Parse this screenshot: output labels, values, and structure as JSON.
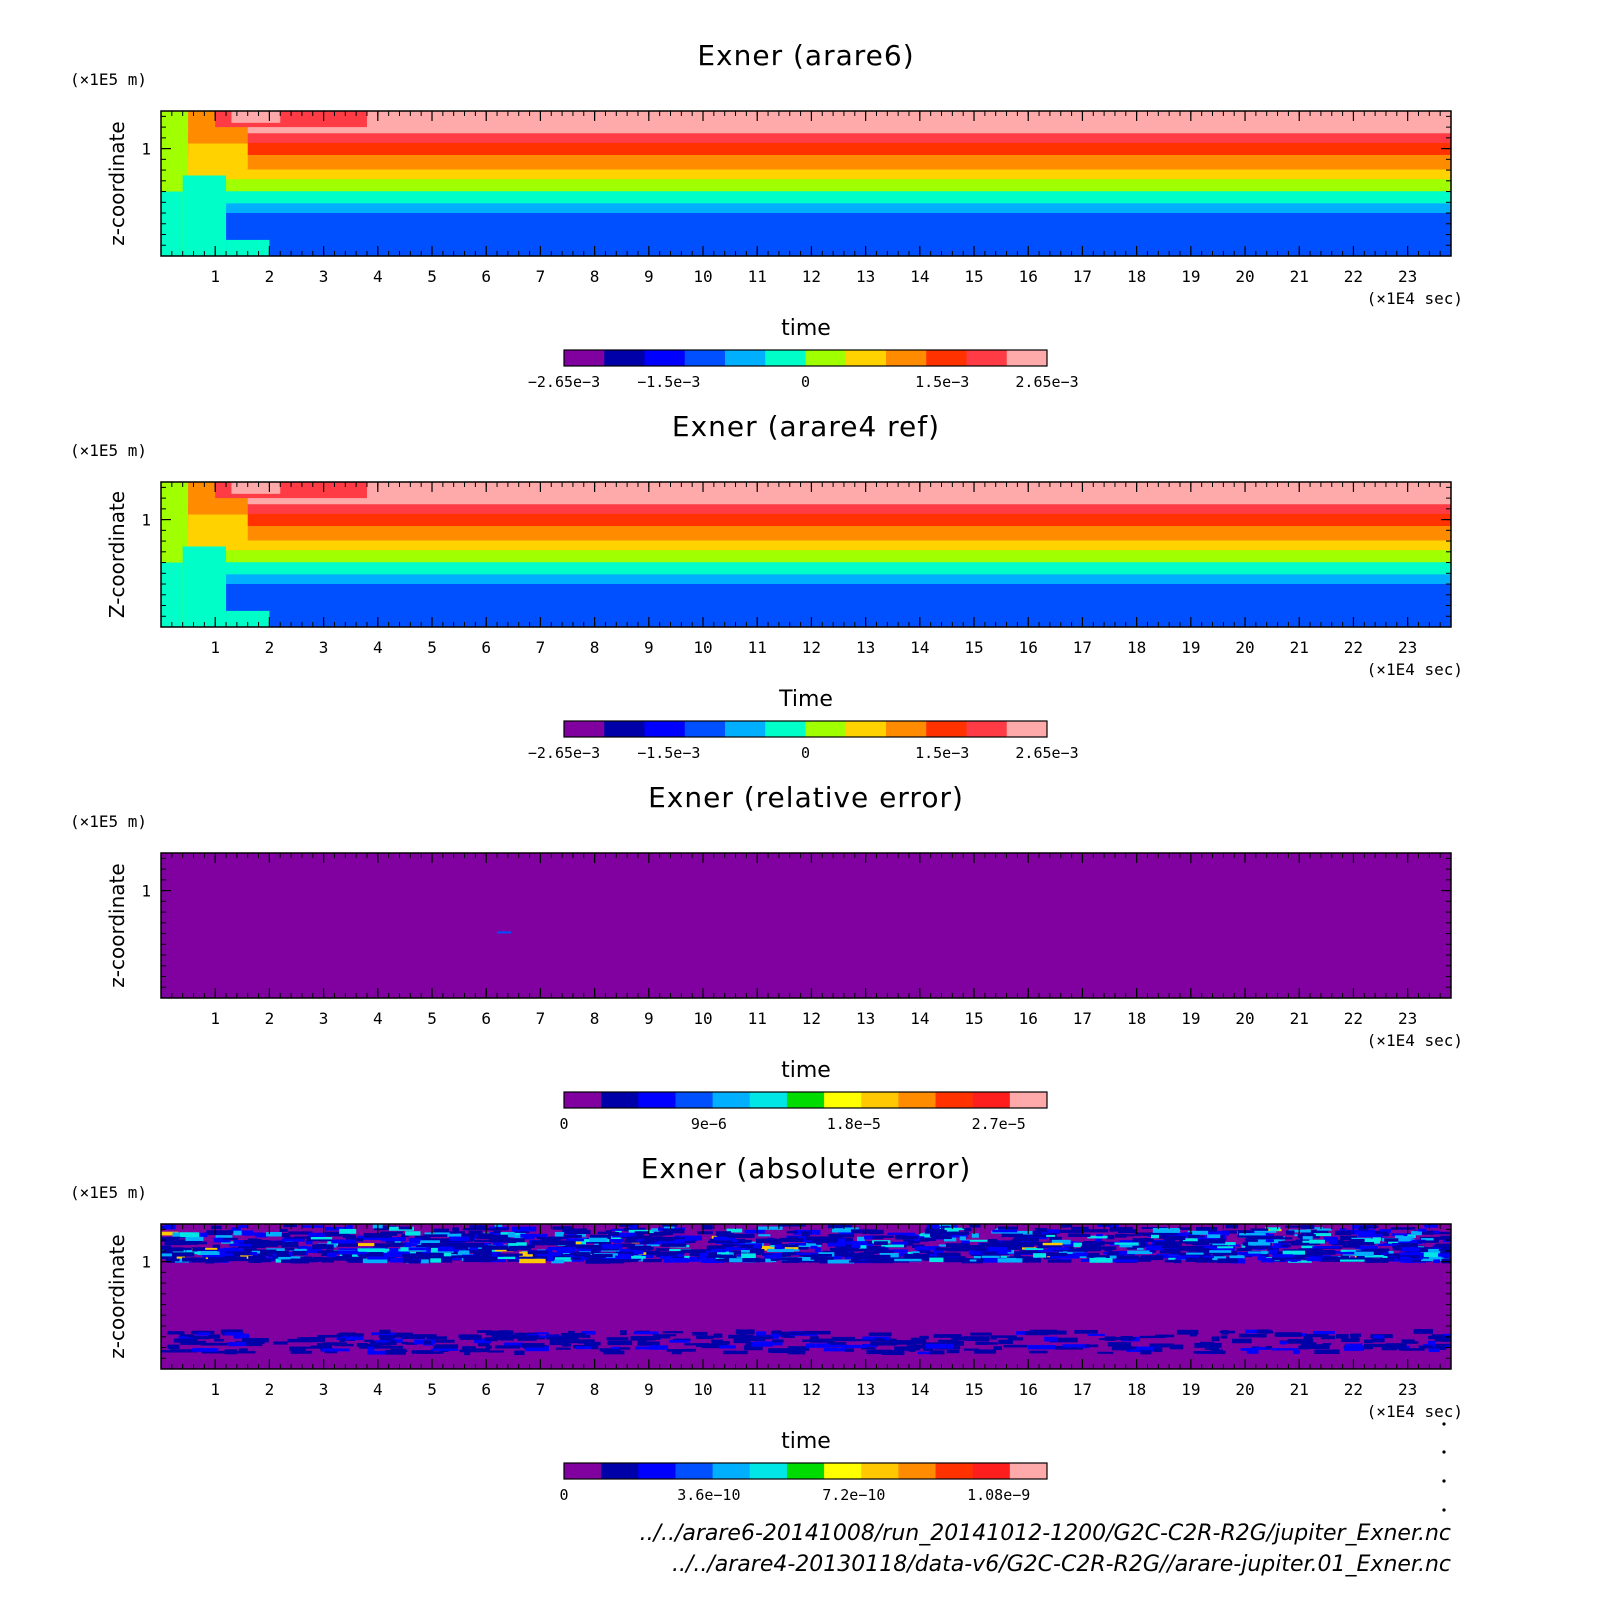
{
  "chart_data": [
    {
      "type": "heatmap",
      "title": "Exner (arare6)",
      "xlabel": "time",
      "ylabel": "z-coordinate",
      "x_unit": "(×1E4 sec)",
      "y_unit": "(×1E5 m)",
      "xlim": [
        0,
        23.8
      ],
      "ylim": [
        0,
        1.35
      ],
      "xticks": [
        1,
        2,
        3,
        4,
        5,
        6,
        7,
        8,
        9,
        10,
        11,
        12,
        13,
        14,
        15,
        16,
        17,
        18,
        19,
        20,
        21,
        22,
        23
      ],
      "yticks": [
        1
      ],
      "colorbar": {
        "range": [
          -0.00265,
          0.00265
        ],
        "labels": [
          {
            "v": -0.00265,
            "t": "-2.65e-3"
          },
          {
            "v": -0.0015,
            "t": "-1.5e-3"
          },
          {
            "v": 0,
            "t": "0"
          },
          {
            "v": 0.0015,
            "t": "1.5e-3"
          },
          {
            "v": 0.00265,
            "t": "2.65e-3"
          }
        ],
        "colors": [
          "#8000a0",
          "#0000a8",
          "#0000ff",
          "#0050ff",
          "#00b0ff",
          "#00ffc8",
          "#a0ff00",
          "#ffd200",
          "#ff8c00",
          "#ff3200",
          "#ff3c46",
          "#ffaaaa"
        ]
      },
      "steady_profile": [
        {
          "z": 1.35,
          "v": 0.0025
        },
        {
          "z": 1.2,
          "v": 0.0025
        },
        {
          "z": 1.1,
          "v": 0.002
        },
        {
          "z": 1.0,
          "v": 0.0015
        },
        {
          "z": 0.85,
          "v": 0.001
        },
        {
          "z": 0.7,
          "v": 0.0004
        },
        {
          "z": 0.55,
          "v": -0.0002
        },
        {
          "z": 0.4,
          "v": -0.0009
        },
        {
          "z": 0.0,
          "v": -0.0012
        }
      ]
    },
    {
      "type": "heatmap",
      "title": "Exner (arare4 ref)",
      "xlabel": "Time",
      "ylabel": "Z-coordinate",
      "x_unit": "(×1E4 sec)",
      "y_unit": "(×1E5 m)",
      "xlim": [
        0,
        23.8
      ],
      "ylim": [
        0,
        1.35
      ],
      "xticks": [
        1,
        2,
        3,
        4,
        5,
        6,
        7,
        8,
        9,
        10,
        11,
        12,
        13,
        14,
        15,
        16,
        17,
        18,
        19,
        20,
        21,
        22,
        23
      ],
      "yticks": [
        1
      ],
      "colorbar": {
        "range": [
          -0.00265,
          0.00265
        ],
        "labels": [
          {
            "v": -0.00265,
            "t": "-2.65e-3"
          },
          {
            "v": -0.0015,
            "t": "-1.5e-3"
          },
          {
            "v": 0,
            "t": "0"
          },
          {
            "v": 0.0015,
            "t": "1.5e-3"
          },
          {
            "v": 0.00265,
            "t": "2.65e-3"
          }
        ],
        "colors": [
          "#8000a0",
          "#0000a8",
          "#0000ff",
          "#0050ff",
          "#00b0ff",
          "#00ffc8",
          "#a0ff00",
          "#ffd200",
          "#ff8c00",
          "#ff3200",
          "#ff3c46",
          "#ffaaaa"
        ]
      },
      "steady_profile": [
        {
          "z": 1.35,
          "v": 0.0025
        },
        {
          "z": 1.2,
          "v": 0.0025
        },
        {
          "z": 1.1,
          "v": 0.002
        },
        {
          "z": 1.0,
          "v": 0.0015
        },
        {
          "z": 0.85,
          "v": 0.001
        },
        {
          "z": 0.7,
          "v": 0.0004
        },
        {
          "z": 0.55,
          "v": -0.0002
        },
        {
          "z": 0.4,
          "v": -0.0009
        },
        {
          "z": 0.0,
          "v": -0.0012
        }
      ]
    },
    {
      "type": "heatmap",
      "title": "Exner (relative error)",
      "xlabel": "time",
      "ylabel": "z-coordinate",
      "x_unit": "(×1E4 sec)",
      "y_unit": "(×1E5 m)",
      "xlim": [
        0,
        23.8
      ],
      "ylim": [
        0,
        1.35
      ],
      "xticks": [
        1,
        2,
        3,
        4,
        5,
        6,
        7,
        8,
        9,
        10,
        11,
        12,
        13,
        14,
        15,
        16,
        17,
        18,
        19,
        20,
        21,
        22,
        23
      ],
      "yticks": [
        1
      ],
      "colorbar": {
        "range": [
          0,
          3e-05
        ],
        "labels": [
          {
            "v": 0,
            "t": "0"
          },
          {
            "v": 9e-06,
            "t": "9e-6"
          },
          {
            "v": 1.8e-05,
            "t": "1.8e-5"
          },
          {
            "v": 2.7e-05,
            "t": "2.7e-5"
          }
        ],
        "colors": [
          "#8000a0",
          "#0000a8",
          "#0000ff",
          "#0050ff",
          "#00b0ff",
          "#00e6e6",
          "#00dc00",
          "#ffff00",
          "#ffc800",
          "#ff8c00",
          "#ff3200",
          "#ff1e1e",
          "#ffaaaa"
        ]
      },
      "value_everywhere": 0
    },
    {
      "type": "heatmap",
      "title": "Exner (absolute error)",
      "xlabel": "time",
      "ylabel": "z-coordinate",
      "x_unit": "(×1E4 sec)",
      "y_unit": "(×1E5 m)",
      "xlim": [
        0,
        23.8
      ],
      "ylim": [
        0,
        1.35
      ],
      "xticks": [
        1,
        2,
        3,
        4,
        5,
        6,
        7,
        8,
        9,
        10,
        11,
        12,
        13,
        14,
        15,
        16,
        17,
        18,
        19,
        20,
        21,
        22,
        23
      ],
      "yticks": [
        1
      ],
      "colorbar": {
        "range": [
          0,
          1.2e-09
        ],
        "labels": [
          {
            "v": 0,
            "t": "0"
          },
          {
            "v": 3.6e-10,
            "t": "3.6e-10"
          },
          {
            "v": 7.2e-10,
            "t": "7.2e-10"
          },
          {
            "v": 1.08e-09,
            "t": "1.08e-9"
          }
        ],
        "colors": [
          "#8000a0",
          "#0000a8",
          "#0000ff",
          "#0050ff",
          "#00b0ff",
          "#00e6e6",
          "#00dc00",
          "#ffff00",
          "#ffc800",
          "#ff8c00",
          "#ff3200",
          "#ff1e1e",
          "#ffaaaa"
        ]
      },
      "noise_band_upper_z": [
        1.0,
        1.35
      ],
      "noise_band_lower_z": [
        0.15,
        0.35
      ]
    }
  ],
  "footer": {
    "line1": "../../arare6-20141008/run_20141012-1200/G2C-C2R-R2G/jupiter_Exner.nc",
    "line2": "../../arare4-20130118/data-v6/G2C-C2R-R2G//arare-jupiter.01_Exner.nc"
  }
}
